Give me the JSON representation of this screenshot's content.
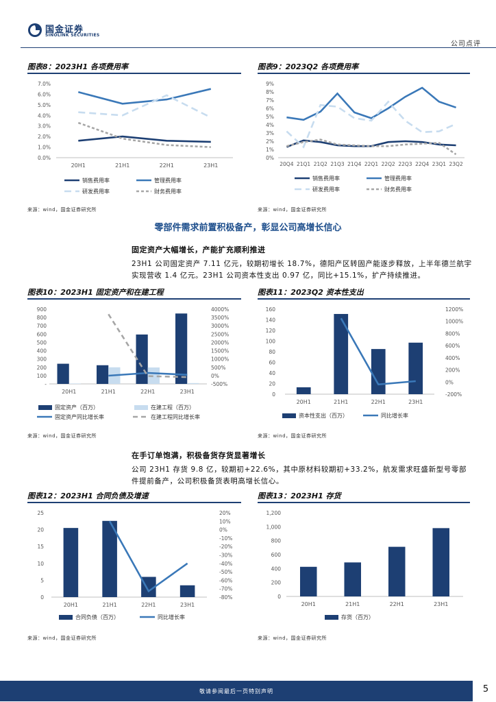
{
  "header": {
    "logo_cn": "国金证券",
    "logo_en": "SINOLINK SECURITIES",
    "report_type": "公司点评"
  },
  "section": {
    "heading": "零部件需求前置积极备产，彰显公司高增长信心",
    "sub1": "固定资产大幅增长，产能扩充顺利推进",
    "para1": "23H1 公司固定资产 7.11 亿元，较期初增长 18.7%，德阳产区转固产能逐步释放，上半年德兰航宇实现营收 1.4 亿元。23H1 公司资本性支出 0.97 亿，同比+15.1%，扩产持续推进。",
    "sub2": "在手订单饱满，积极备货存货显著增长",
    "para2": "公司 23H1 存货 9.8 亿，较期初+22.6%，其中原材料较期初+33.2%，航发需求旺盛新型号零部件提前备产，公司积极备货表明高增长信心。"
  },
  "source": "来源：wind，国金证券研究所",
  "footer": {
    "disclaimer": "敬请参阅最后一页特别声明",
    "page": "5"
  },
  "colors": {
    "navy": "#1d3f73",
    "blue": "#3a78b8",
    "light_blue": "#c7dcef",
    "gray": "#a6a6a6"
  },
  "chart_data": [
    {
      "id": "fig8",
      "type": "line",
      "title": "图表8：2023H1 各项费用率",
      "categories": [
        "20H1",
        "21H1",
        "22H1",
        "23H1"
      ],
      "y_ticks": [
        "0.0%",
        "1.0%",
        "2.0%",
        "3.0%",
        "4.0%",
        "5.0%",
        "6.0%",
        "7.0%"
      ],
      "ylim": [
        0,
        7
      ],
      "series": [
        {
          "name": "销售费用率",
          "values": [
            1.6,
            2.0,
            1.6,
            1.5
          ],
          "color": "#1d3f73",
          "dash": ""
        },
        {
          "name": "管理费用率",
          "values": [
            6.2,
            5.1,
            5.5,
            6.5
          ],
          "color": "#3a78b8",
          "dash": ""
        },
        {
          "name": "研发费用率",
          "values": [
            4.3,
            4.0,
            5.9,
            3.8
          ],
          "color": "#c7dcef",
          "dash": "10,6"
        },
        {
          "name": "财务费用率",
          "values": [
            3.3,
            1.8,
            1.2,
            1.0
          ],
          "color": "#a6a6a6",
          "dash": "4,3"
        }
      ]
    },
    {
      "id": "fig9",
      "type": "line",
      "title": "图表9：2023Q2 各项费用率",
      "categories": [
        "20Q4",
        "21Q1",
        "21Q2",
        "21Q3",
        "21Q4",
        "22Q1",
        "22Q2",
        "22Q3",
        "22Q4",
        "23Q1",
        "23Q2"
      ],
      "y_ticks": [
        "0%",
        "1%",
        "2%",
        "3%",
        "4%",
        "5%",
        "6%",
        "7%",
        "8%",
        "9%"
      ],
      "ylim": [
        0,
        9
      ],
      "series": [
        {
          "name": "销售费用率",
          "values": [
            1.3,
            2.1,
            1.9,
            1.5,
            1.4,
            1.4,
            1.9,
            2.0,
            1.9,
            1.6,
            1.5
          ],
          "color": "#1d3f73",
          "dash": ""
        },
        {
          "name": "管理费用率",
          "values": [
            4.9,
            4.6,
            5.6,
            7.8,
            5.5,
            4.8,
            6.0,
            7.4,
            8.5,
            6.8,
            6.1
          ],
          "color": "#3a78b8",
          "dash": ""
        },
        {
          "name": "研发费用率",
          "values": [
            3.2,
            1.3,
            6.4,
            6.2,
            4.8,
            4.5,
            6.8,
            4.5,
            3.1,
            3.2,
            4.1
          ],
          "color": "#c7dcef",
          "dash": "10,6"
        },
        {
          "name": "财务费用率",
          "values": [
            1.4,
            1.9,
            2.2,
            1.6,
            1.5,
            1.4,
            1.4,
            1.6,
            1.7,
            1.8,
            0.4
          ],
          "color": "#a6a6a6",
          "dash": "4,3"
        }
      ]
    },
    {
      "id": "fig10",
      "type": "bar",
      "title": "图表10：2023H1 固定资产和在建工程",
      "categories": [
        "20H1",
        "21H1",
        "22H1",
        "23H1"
      ],
      "y_ticks": [
        "-",
        "100",
        "200",
        "300",
        "400",
        "500",
        "600",
        "700",
        "800",
        "900"
      ],
      "ylim": [
        0,
        900
      ],
      "y2_ticks": [
        "-500%",
        "0%",
        "500%",
        "1000%",
        "1500%",
        "2000%",
        "2500%",
        "3000%",
        "3500%",
        "4000%"
      ],
      "y2lim": [
        -500,
        4000
      ],
      "bars": [
        {
          "name": "固定资产（百万）",
          "values": [
            243,
            225,
            595,
            848
          ],
          "color": "#1d3f73"
        },
        {
          "name": "在建工程（百万）",
          "values": [
            5,
            200,
            198,
            10
          ],
          "color": "#c7dcef"
        }
      ],
      "lines": [
        {
          "name": "固定资产同比增长率",
          "values": [
            null,
            -5,
            160,
            50
          ],
          "color": "#3a78b8",
          "dash": ""
        },
        {
          "name": "在建工程同比增长率",
          "values": [
            null,
            3700,
            -30,
            -90
          ],
          "color": "#a6a6a6",
          "dash": "7,5"
        }
      ]
    },
    {
      "id": "fig11",
      "type": "bar",
      "title": "图表11：2023Q2 资本性支出",
      "categories": [
        "20H1",
        "21H1",
        "22H1",
        "23H1"
      ],
      "y_ticks": [
        "0",
        "20",
        "40",
        "60",
        "80",
        "100",
        "120",
        "140",
        "160"
      ],
      "ylim": [
        0,
        160
      ],
      "y2_ticks": [
        "-200%",
        "0%",
        "200%",
        "400%",
        "600%",
        "800%",
        "1000%",
        "1200%"
      ],
      "y2lim": [
        -200,
        1200
      ],
      "bars": [
        {
          "name": "资本性支出（百万）",
          "values": [
            13,
            151,
            85,
            97
          ],
          "color": "#1d3f73"
        }
      ],
      "lines": [
        {
          "name": "同比增长率",
          "values": [
            null,
            1050,
            -40,
            15
          ],
          "color": "#3a78b8",
          "dash": ""
        }
      ]
    },
    {
      "id": "fig12",
      "type": "bar",
      "title": "图表12：2023H1 合同负债及增速",
      "categories": [
        "20H1",
        "21H1",
        "22H1",
        "23H1"
      ],
      "y_ticks": [
        "0",
        "5",
        "10",
        "15",
        "20",
        "25"
      ],
      "ylim": [
        0,
        25
      ],
      "y2_ticks": [
        "-80%",
        "-70%",
        "-60%",
        "-50%",
        "-40%",
        "-30%",
        "-20%",
        "-10%",
        "0%",
        "10%",
        "20%"
      ],
      "y2lim": [
        -80,
        20
      ],
      "bars": [
        {
          "name": "合同负债（百万）",
          "values": [
            20.5,
            22.6,
            6.0,
            3.5
          ],
          "color": "#1d3f73"
        }
      ],
      "lines": [
        {
          "name": "同比增长率",
          "values": [
            null,
            10,
            -73,
            -40
          ],
          "color": "#3a78b8",
          "dash": ""
        }
      ]
    },
    {
      "id": "fig13",
      "type": "bar",
      "title": "图表13：2023H1 存货",
      "categories": [
        "20H1",
        "21H1",
        "22H1",
        "23H1"
      ],
      "y_ticks": [
        "0",
        "200",
        "400",
        "600",
        "800",
        "1,000",
        "1,200"
      ],
      "ylim": [
        0,
        1200
      ],
      "bars": [
        {
          "name": "存货（百万）",
          "values": [
            425,
            488,
            712,
            980
          ],
          "color": "#1d3f73"
        }
      ],
      "lines": []
    }
  ]
}
